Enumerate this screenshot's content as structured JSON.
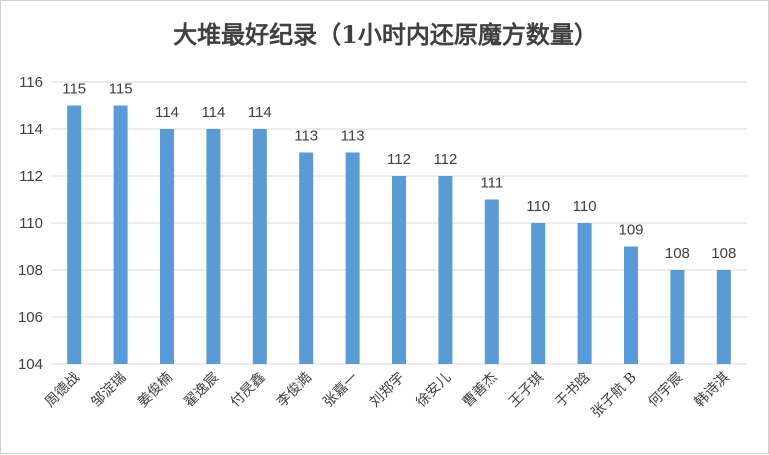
{
  "chart_data": {
    "type": "bar",
    "title": "大堆最好纪录（1小时内还原魔方数量）",
    "categories": [
      "周德战",
      "邹淀瑞",
      "姜俊楠",
      "翟逸宸",
      "付昃鑫",
      "李俊澔",
      "张嘉一",
      "刘郑宇",
      "徐安儿",
      "曹善杰",
      "王子琪",
      "于书晗",
      "张子航 B",
      "何宇宸",
      "韩诗淇"
    ],
    "values": [
      115,
      115,
      114,
      114,
      114,
      113,
      113,
      112,
      112,
      111,
      110,
      110,
      109,
      108,
      108
    ],
    "ylim": [
      104,
      116
    ],
    "yticks": [
      104,
      106,
      108,
      110,
      112,
      114,
      116
    ],
    "xlabel": "",
    "ylabel": "",
    "grid": true,
    "bar_color": "#5b9bd5",
    "grid_color": "#d9d9d9"
  }
}
